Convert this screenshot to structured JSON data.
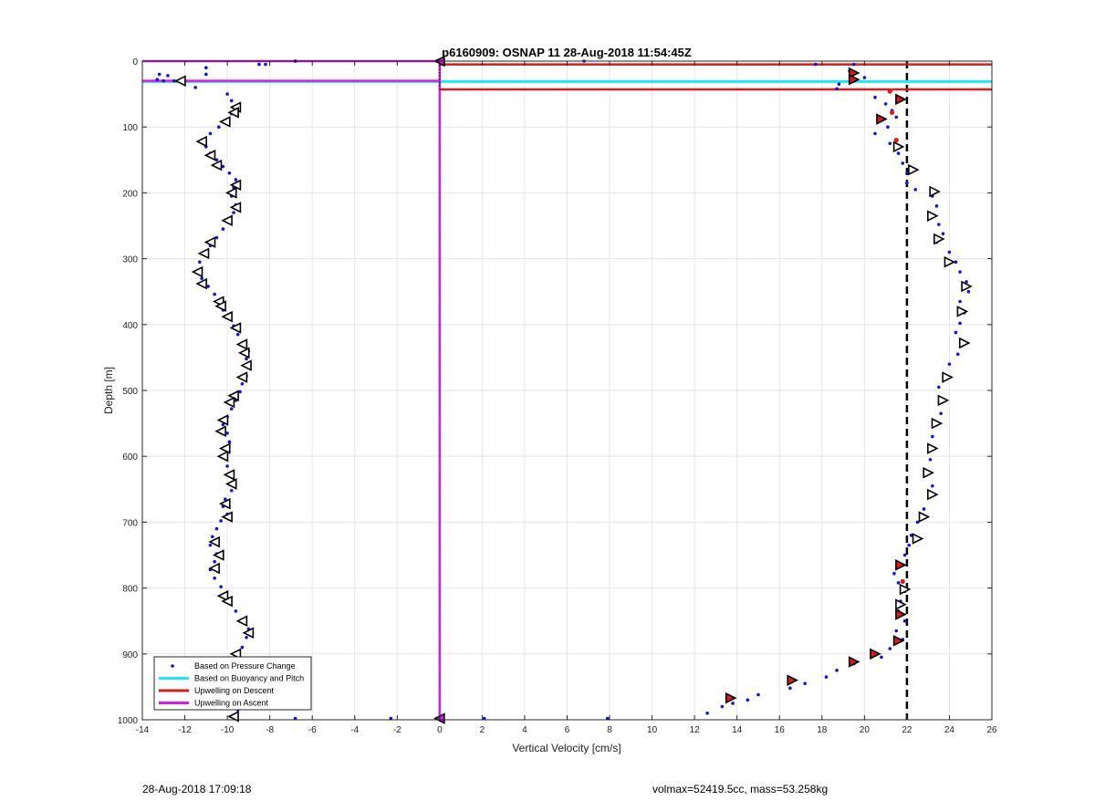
{
  "chart_data": {
    "type": "scatter",
    "title": "p6160909: OSNAP 11 28-Aug-2018 11:54:45Z",
    "xlabel": "Vertical Velocity [cm/s]",
    "ylabel": "Depth [m]",
    "xlim": [
      -14,
      26
    ],
    "ylim": [
      0,
      1000
    ],
    "y_reversed": true,
    "grid": true,
    "x_ticks": [
      "-14",
      "-12",
      "-10",
      "-8",
      "-6",
      "-4",
      "-2",
      "0",
      "2",
      "4",
      "6",
      "8",
      "10",
      "12",
      "14",
      "16",
      "18",
      "20",
      "22",
      "24",
      "26"
    ],
    "y_ticks": [
      "0",
      "100",
      "200",
      "300",
      "400",
      "500",
      "600",
      "700",
      "800",
      "900",
      "1000"
    ],
    "colors": {
      "pressure": "#1414c8",
      "buoyancy": "#22e6f0",
      "upwelling_descent": "#d21e1e",
      "upwelling_ascent": "#d21ee6",
      "triangle_fill_red": "#d21e1e",
      "target_line": "#000000"
    },
    "legend": {
      "placement": "bottom-left",
      "entries": [
        {
          "label": "Based on Pressure Change",
          "marker": "dot",
          "color": "#1414c8"
        },
        {
          "label": "Based on Buoyancy and Pitch",
          "marker": "line",
          "color": "#22e6f0"
        },
        {
          "label": "Upwelling on Descent",
          "marker": "line",
          "color": "#d21e1e"
        },
        {
          "label": "Upwelling on Ascent",
          "marker": "line",
          "color": "#d21ee6"
        }
      ]
    },
    "descent_target_velocity": 22,
    "descent_pressure_profile": [
      [
        19.5,
        5
      ],
      [
        19.3,
        15
      ],
      [
        20,
        25
      ],
      [
        18.8,
        35
      ],
      [
        18.7,
        42
      ],
      [
        20.5,
        55
      ],
      [
        21,
        65
      ],
      [
        21.3,
        75
      ],
      [
        21.5,
        85
      ],
      [
        21.1,
        100
      ],
      [
        20.5,
        110
      ],
      [
        21.2,
        125
      ],
      [
        21.6,
        140
      ],
      [
        21.8,
        155
      ],
      [
        22,
        170
      ],
      [
        22,
        185
      ],
      [
        22.4,
        195
      ],
      [
        23.2,
        205
      ],
      [
        23.4,
        220
      ],
      [
        23.1,
        232
      ],
      [
        23.5,
        248
      ],
      [
        23.7,
        262
      ],
      [
        23.4,
        275
      ],
      [
        24,
        290
      ],
      [
        24.3,
        305
      ],
      [
        24.5,
        320
      ],
      [
        24.8,
        335
      ],
      [
        24.9,
        350
      ],
      [
        24.5,
        365
      ],
      [
        24.7,
        382
      ],
      [
        24.5,
        398
      ],
      [
        24.3,
        412
      ],
      [
        24.6,
        428
      ],
      [
        24.4,
        445
      ],
      [
        24,
        460
      ],
      [
        23.8,
        480
      ],
      [
        23.5,
        495
      ],
      [
        23.7,
        515
      ],
      [
        23.6,
        535
      ],
      [
        23.4,
        552
      ],
      [
        23.2,
        570
      ],
      [
        23.3,
        588
      ],
      [
        23.1,
        605
      ],
      [
        22.9,
        625
      ],
      [
        23.2,
        645
      ],
      [
        23.1,
        660
      ],
      [
        22.8,
        680
      ],
      [
        22.5,
        700
      ],
      [
        22.2,
        720
      ],
      [
        22.1,
        735
      ],
      [
        21.9,
        750
      ],
      [
        21.7,
        765
      ],
      [
        21.4,
        778
      ],
      [
        21.6,
        792
      ],
      [
        21.9,
        805
      ],
      [
        21.7,
        820
      ],
      [
        21.6,
        835
      ],
      [
        21.9,
        850
      ],
      [
        21.5,
        865
      ],
      [
        21.8,
        878
      ],
      [
        21.2,
        892
      ],
      [
        20.8,
        905
      ],
      [
        19.5,
        915
      ],
      [
        18.7,
        925
      ],
      [
        18.2,
        935
      ],
      [
        17.2,
        945
      ],
      [
        16.5,
        952
      ],
      [
        15,
        962
      ],
      [
        14.5,
        970
      ],
      [
        13.8,
        975
      ],
      [
        13.3,
        980
      ],
      [
        12.6,
        990
      ]
    ],
    "ascent_pressure_profile": [
      [
        -9.7,
        995
      ],
      [
        -9.5,
        985
      ],
      [
        -9.8,
        970
      ],
      [
        -9.4,
        955
      ],
      [
        -9.6,
        945
      ],
      [
        -9.9,
        932
      ],
      [
        -9.7,
        918
      ],
      [
        -9.5,
        905
      ],
      [
        -9.3,
        890
      ],
      [
        -9.1,
        875
      ],
      [
        -9.0,
        862
      ],
      [
        -9.3,
        848
      ],
      [
        -9.6,
        835
      ],
      [
        -9.9,
        822
      ],
      [
        -10.1,
        810
      ],
      [
        -10.3,
        798
      ],
      [
        -10.6,
        785
      ],
      [
        -10.8,
        772
      ],
      [
        -10.6,
        760
      ],
      [
        -10.5,
        748
      ],
      [
        -10.8,
        735
      ],
      [
        -10.7,
        722
      ],
      [
        -10.5,
        710
      ],
      [
        -10.3,
        698
      ],
      [
        -10.0,
        688
      ],
      [
        -10.2,
        676
      ],
      [
        -10.1,
        665
      ],
      [
        -9.8,
        652
      ],
      [
        -9.7,
        640
      ],
      [
        -9.9,
        628
      ],
      [
        -10.0,
        615
      ],
      [
        -10.2,
        602
      ],
      [
        -10.1,
        590
      ],
      [
        -9.9,
        578
      ],
      [
        -10.0,
        565
      ],
      [
        -10.2,
        552
      ],
      [
        -10.0,
        540
      ],
      [
        -9.8,
        528
      ],
      [
        -9.6,
        515
      ],
      [
        -9.4,
        502
      ],
      [
        -9.3,
        490
      ],
      [
        -9.1,
        478
      ],
      [
        -9.0,
        465
      ],
      [
        -9.1,
        452
      ],
      [
        -9.0,
        440
      ],
      [
        -9.2,
        428
      ],
      [
        -9.5,
        415
      ],
      [
        -9.7,
        402
      ],
      [
        -9.9,
        390
      ],
      [
        -10.2,
        378
      ],
      [
        -10.4,
        366
      ],
      [
        -10.6,
        354
      ],
      [
        -10.9,
        342
      ],
      [
        -11.2,
        330
      ],
      [
        -11.4,
        318
      ],
      [
        -11.3,
        305
      ],
      [
        -11.1,
        292
      ],
      [
        -10.8,
        280
      ],
      [
        -10.5,
        268
      ],
      [
        -10.2,
        255
      ],
      [
        -10.0,
        243
      ],
      [
        -9.7,
        230
      ],
      [
        -9.6,
        218
      ],
      [
        -9.8,
        205
      ],
      [
        -9.7,
        192
      ],
      [
        -9.6,
        180
      ],
      [
        -9.9,
        170
      ],
      [
        -10.2,
        160
      ],
      [
        -10.5,
        150
      ],
      [
        -10.8,
        140
      ],
      [
        -11.0,
        130
      ],
      [
        -11.2,
        120
      ],
      [
        -10.8,
        110
      ],
      [
        -10.4,
        100
      ],
      [
        -10.0,
        90
      ],
      [
        -9.8,
        80
      ],
      [
        -9.6,
        70
      ],
      [
        -9.8,
        60
      ],
      [
        -10.0,
        50
      ],
      [
        -11.5,
        40
      ],
      [
        -12.5,
        30
      ],
      [
        -13.3,
        28
      ],
      [
        -12.8,
        22
      ],
      [
        -11.0,
        10
      ],
      [
        -8.2,
        5
      ],
      [
        -6.8,
        0
      ]
    ],
    "descent_triangles": [
      [
        19.5,
        18
      ],
      [
        19.5,
        28
      ],
      [
        21.7,
        58
      ],
      [
        20.8,
        88
      ],
      [
        21.6,
        130
      ],
      [
        22.3,
        165
      ],
      [
        23.3,
        198
      ],
      [
        23.2,
        235
      ],
      [
        23.5,
        270
      ],
      [
        24.0,
        305
      ],
      [
        24.8,
        342
      ],
      [
        24.6,
        380
      ],
      [
        24.7,
        428
      ],
      [
        23.9,
        480
      ],
      [
        23.7,
        515
      ],
      [
        23.4,
        550
      ],
      [
        23.2,
        588
      ],
      [
        23.0,
        625
      ],
      [
        23.2,
        658
      ],
      [
        22.8,
        692
      ],
      [
        22.5,
        725
      ],
      [
        21.7,
        765
      ],
      [
        21.9,
        802
      ],
      [
        21.7,
        825
      ],
      [
        21.7,
        840
      ],
      [
        21.6,
        880
      ],
      [
        20.5,
        900
      ],
      [
        19.5,
        912
      ],
      [
        16.6,
        940
      ],
      [
        13.7,
        967
      ]
    ],
    "descent_red_triangles": [
      [
        19.5,
        18
      ],
      [
        19.5,
        28
      ],
      [
        21.7,
        58
      ],
      [
        20.8,
        88
      ],
      [
        21.7,
        765
      ],
      [
        21.7,
        840
      ],
      [
        21.6,
        880
      ],
      [
        20.5,
        900
      ],
      [
        19.5,
        912
      ],
      [
        16.6,
        940
      ],
      [
        13.7,
        967
      ]
    ],
    "descent_red_dots": [
      [
        21.2,
        46
      ],
      [
        21.3,
        78
      ],
      [
        21.5,
        120
      ],
      [
        21.8,
        790
      ]
    ],
    "ascent_triangles": [
      [
        -12.2,
        30
      ],
      [
        -9.6,
        70
      ],
      [
        -9.7,
        78
      ],
      [
        -10.1,
        92
      ],
      [
        -11.2,
        122
      ],
      [
        -10.8,
        143
      ],
      [
        -10.5,
        158
      ],
      [
        -9.6,
        188
      ],
      [
        -9.8,
        200
      ],
      [
        -9.6,
        222
      ],
      [
        -10.0,
        242
      ],
      [
        -10.8,
        275
      ],
      [
        -11.1,
        292
      ],
      [
        -11.4,
        320
      ],
      [
        -11.2,
        338
      ],
      [
        -10.4,
        365
      ],
      [
        -10.3,
        372
      ],
      [
        -10.0,
        388
      ],
      [
        -9.6,
        405
      ],
      [
        -9.3,
        430
      ],
      [
        -9.2,
        443
      ],
      [
        -9.1,
        462
      ],
      [
        -9.3,
        480
      ],
      [
        -9.7,
        508
      ],
      [
        -9.9,
        518
      ],
      [
        -10.2,
        545
      ],
      [
        -10.3,
        562
      ],
      [
        -10.1,
        588
      ],
      [
        -10.2,
        600
      ],
      [
        -9.9,
        628
      ],
      [
        -9.8,
        642
      ],
      [
        -10.1,
        672
      ],
      [
        -10.0,
        692
      ],
      [
        -10.6,
        730
      ],
      [
        -10.4,
        750
      ],
      [
        -10.6,
        770
      ],
      [
        -10.2,
        812
      ],
      [
        -10.0,
        820
      ],
      [
        -9.3,
        850
      ],
      [
        -9.0,
        868
      ],
      [
        -9.6,
        900
      ],
      [
        -9.8,
        938
      ],
      [
        -9.7,
        945
      ],
      [
        -9.7,
        995
      ]
    ],
    "low_outliers": [
      [
        -13.2,
        20
      ],
      [
        -13.0,
        30
      ],
      [
        -11.0,
        20
      ],
      [
        -8.5,
        5
      ],
      [
        -6.8,
        0
      ],
      [
        -6.8,
        998
      ],
      [
        -2.3,
        998
      ],
      [
        2.1,
        998
      ],
      [
        7.9,
        998
      ],
      [
        6.8,
        0
      ],
      [
        17.7,
        5
      ]
    ],
    "near_zero_triangles": [
      [
        0,
        0
      ],
      [
        0,
        998
      ]
    ],
    "buoyancy_line_depth": 31,
    "descent_upwelling_lines": [
      5,
      43
    ],
    "ascent_upwelling_lines": [
      0,
      30
    ],
    "zero_velocity": 0
  },
  "footer": {
    "left": "28-Aug-2018 17:09:18",
    "right": "volmax=52419.5cc, mass=53.258kg"
  }
}
